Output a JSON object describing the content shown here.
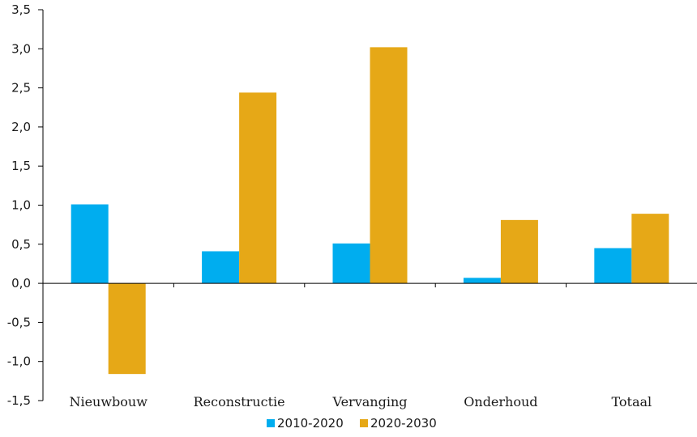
{
  "chart_data": {
    "type": "bar",
    "categories": [
      "Nieuwbouw",
      "Reconstructie",
      "Vervanging",
      "Onderhoud",
      "Totaal"
    ],
    "series": [
      {
        "name": "2010-2020",
        "color": "#00adef",
        "values": [
          1.01,
          0.41,
          0.51,
          0.07,
          0.45
        ]
      },
      {
        "name": "2020-2030",
        "color": "#e6a817",
        "values": [
          -1.16,
          2.44,
          3.02,
          0.81,
          0.89
        ]
      }
    ],
    "ylim": [
      -1.5,
      3.5
    ],
    "yticks": [
      "-1,5",
      "-1,0",
      "-0,5",
      "0,0",
      "0,5",
      "1,0",
      "1,5",
      "2,0",
      "2,5",
      "3,0",
      "3,5"
    ],
    "ytick_values": [
      -1.5,
      -1.0,
      -0.5,
      0.0,
      0.5,
      1.0,
      1.5,
      2.0,
      2.5,
      3.0,
      3.5
    ],
    "xlabel": "",
    "ylabel": "",
    "grid": false,
    "legend_position": "bottom-center"
  }
}
